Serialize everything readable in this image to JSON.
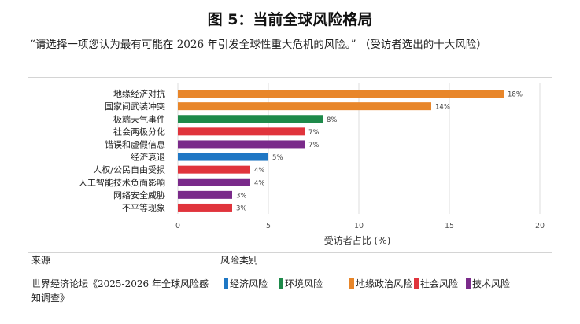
{
  "figure_title": "图 5：当前全球风险格局",
  "question": "“请选择一项您认为最有可能在 2026 年引发全球性重大危机的风险。” （受访者选出的十大风险）",
  "footer": {
    "source_label": "来源",
    "source_text": "世界经济论坛《2025-2026 年全球风险感知调查》",
    "category_label": "风险类别"
  },
  "legend": [
    {
      "label": "经济风险",
      "color": "#1f77c4"
    },
    {
      "label": "环境风险",
      "color": "#1e8a4a"
    },
    {
      "label": "地缘政治风险",
      "color": "#e8862a"
    },
    {
      "label": "社会风险",
      "color": "#e0343c"
    },
    {
      "label": "技术风险",
      "color": "#7a2a8a"
    }
  ],
  "chart_data": {
    "type": "bar",
    "orientation": "horizontal",
    "categories": [
      "地缘经济对抗",
      "国家间武装冲突",
      "极端天气事件",
      "社会两极分化",
      "错误和虚假信息",
      "经济衰退",
      "人权/公民自由受损",
      "人工智能技术负面影响",
      "网络安全威胁",
      "不平等现象"
    ],
    "values": [
      18,
      14,
      8,
      7,
      7,
      5,
      4,
      4,
      3,
      3
    ],
    "value_labels": [
      "18%",
      "14%",
      "8%",
      "7%",
      "7%",
      "5%",
      "4%",
      "4%",
      "3%",
      "3%"
    ],
    "bar_colors": [
      "#e8862a",
      "#e8862a",
      "#1e8a4a",
      "#e0343c",
      "#7a2a8a",
      "#1f77c4",
      "#e0343c",
      "#7a2a8a",
      "#7a2a8a",
      "#e0343c"
    ],
    "xlabel": "受访者占比 (%)",
    "xlim": [
      0,
      20
    ],
    "xticks": [
      0,
      5,
      10,
      15,
      20
    ],
    "xtick_labels": [
      "0",
      "5",
      "10",
      "15",
      "20"
    ],
    "grid": true
  }
}
